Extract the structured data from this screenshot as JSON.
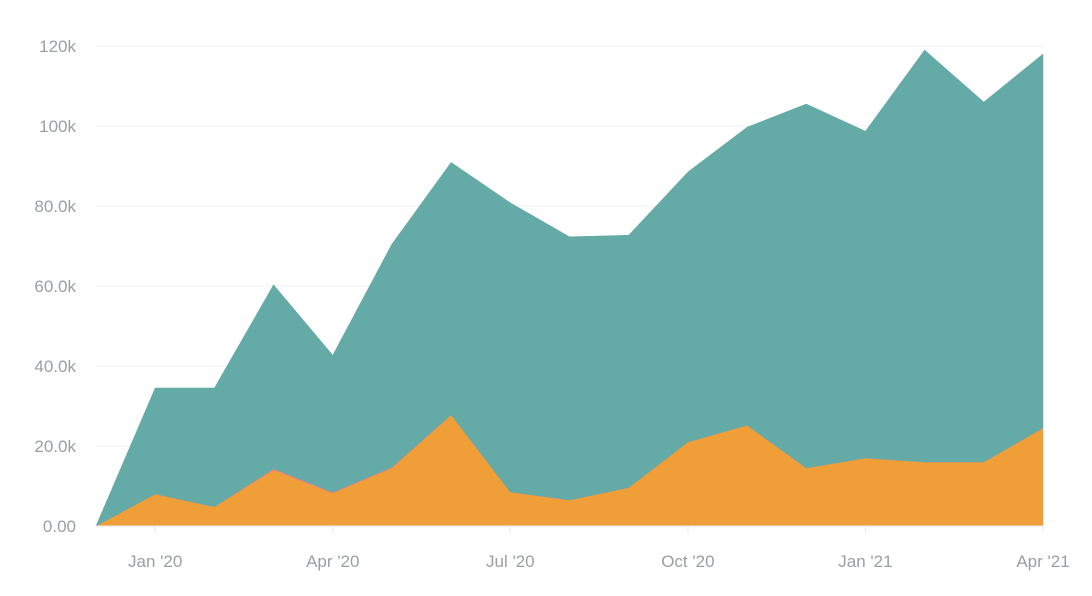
{
  "chart_data": {
    "type": "area",
    "stacked": true,
    "x": [
      "2019-12",
      "2020-01",
      "2020-02",
      "2020-03",
      "2020-04",
      "2020-05",
      "2020-06",
      "2020-07",
      "2020-08",
      "2020-09",
      "2020-10",
      "2020-11",
      "2020-12",
      "2021-01",
      "2021-02",
      "2021-03",
      "2021-04"
    ],
    "x_tick_labels": [
      "Jan '20",
      "Apr '20",
      "Jul '20",
      "Oct '20",
      "Jan '21",
      "Apr '21"
    ],
    "x_tick_dates": [
      "2020-01",
      "2020-04",
      "2020-07",
      "2020-10",
      "2021-01",
      "2021-04"
    ],
    "y_tick_labels": [
      "0.00",
      "20.0k",
      "40.0k",
      "60.0k",
      "80.0k",
      "100k",
      "120k"
    ],
    "y_tick_values": [
      0,
      20000,
      40000,
      60000,
      80000,
      100000,
      120000
    ],
    "ylim": [
      0,
      120000
    ],
    "grid": true,
    "series": [
      {
        "color": "#f09e38",
        "values": [
          0,
          8000,
          4800,
          14000,
          8200,
          14500,
          27800,
          8500,
          6500,
          9600,
          21000,
          25200,
          14500,
          17000,
          16000,
          16000,
          24500
        ]
      },
      {
        "color": "#ef7f7f",
        "values": [
          0,
          0,
          0,
          300,
          200,
          200,
          0,
          0,
          0,
          0,
          0,
          0,
          0,
          0,
          0,
          0,
          0
        ]
      },
      {
        "color": "#64aaa6",
        "values": [
          0,
          26500,
          29700,
          46000,
          34300,
          55800,
          63100,
          72300,
          65800,
          63100,
          67500,
          74500,
          91000,
          81700,
          103000,
          90000,
          93500
        ]
      }
    ]
  }
}
